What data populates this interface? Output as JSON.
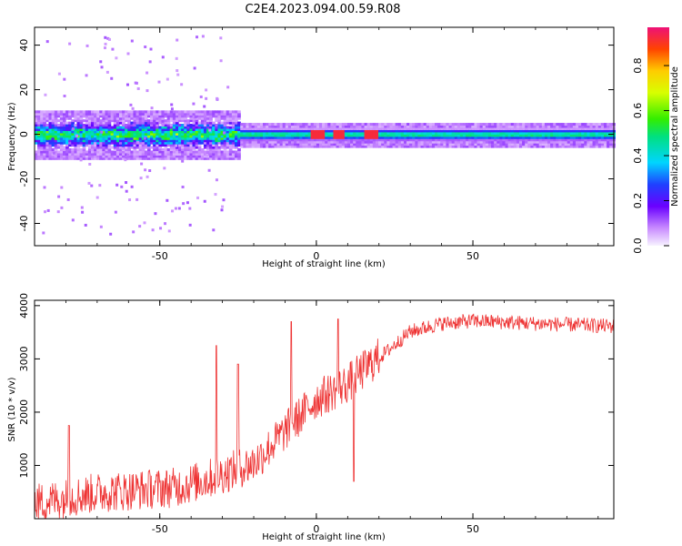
{
  "title": "C2E4.2023.094.00.59.R08",
  "chart_data": [
    {
      "type": "heatmap",
      "xlabel": "Height of straight line (km)",
      "ylabel": "Frequency (Hz)",
      "xlim": [
        -90,
        95
      ],
      "ylim": [
        -50,
        48
      ],
      "xticks": [
        "-50",
        "0",
        "50"
      ],
      "yticks": [
        "-40",
        "-20",
        "0",
        "20",
        "40"
      ],
      "xtick_values": [
        -50,
        0,
        50
      ],
      "ytick_values": [
        -40,
        -20,
        0,
        20,
        40
      ],
      "band": {
        "center_hz": 0,
        "noisy_halfwidth_hz": 6,
        "quiet_halfwidth_hz": 3,
        "transition_km": -25
      },
      "hot_spots_km": [
        0,
        7,
        17
      ],
      "colorbar": {
        "label": "Normalized spectral amplitude",
        "ticks": [
          "0.0",
          "0.2",
          "0.4",
          "0.6",
          "0.8"
        ],
        "tick_values": [
          0.0,
          0.2,
          0.4,
          0.6,
          0.8
        ],
        "range": [
          0,
          0.97
        ]
      }
    },
    {
      "type": "line",
      "xlabel": "Height of straight line (km)",
      "ylabel": "SNR (10 * v/v)",
      "xlim": [
        -90,
        95
      ],
      "ylim": [
        0,
        4100
      ],
      "xticks": [
        "-50",
        "0",
        "50"
      ],
      "yticks": [
        "1000",
        "2000",
        "3000",
        "4000"
      ],
      "xtick_values": [
        -50,
        0,
        50
      ],
      "ytick_values": [
        1000,
        2000,
        3000,
        4000
      ],
      "color": "#ee3333",
      "trend": [
        [
          -90,
          250
        ],
        [
          -70,
          450
        ],
        [
          -45,
          550
        ],
        [
          -35,
          700
        ],
        [
          -20,
          1000
        ],
        [
          -10,
          1600
        ],
        [
          0,
          2200
        ],
        [
          10,
          2500
        ],
        [
          20,
          3000
        ],
        [
          30,
          3500
        ],
        [
          40,
          3650
        ],
        [
          50,
          3700
        ],
        [
          70,
          3650
        ],
        [
          95,
          3600
        ]
      ],
      "spikes": [
        [
          -79,
          1750
        ],
        [
          -32,
          3250
        ],
        [
          -25,
          2900
        ],
        [
          -8,
          3700
        ],
        [
          7,
          3750
        ],
        [
          12,
          700
        ]
      ]
    }
  ]
}
